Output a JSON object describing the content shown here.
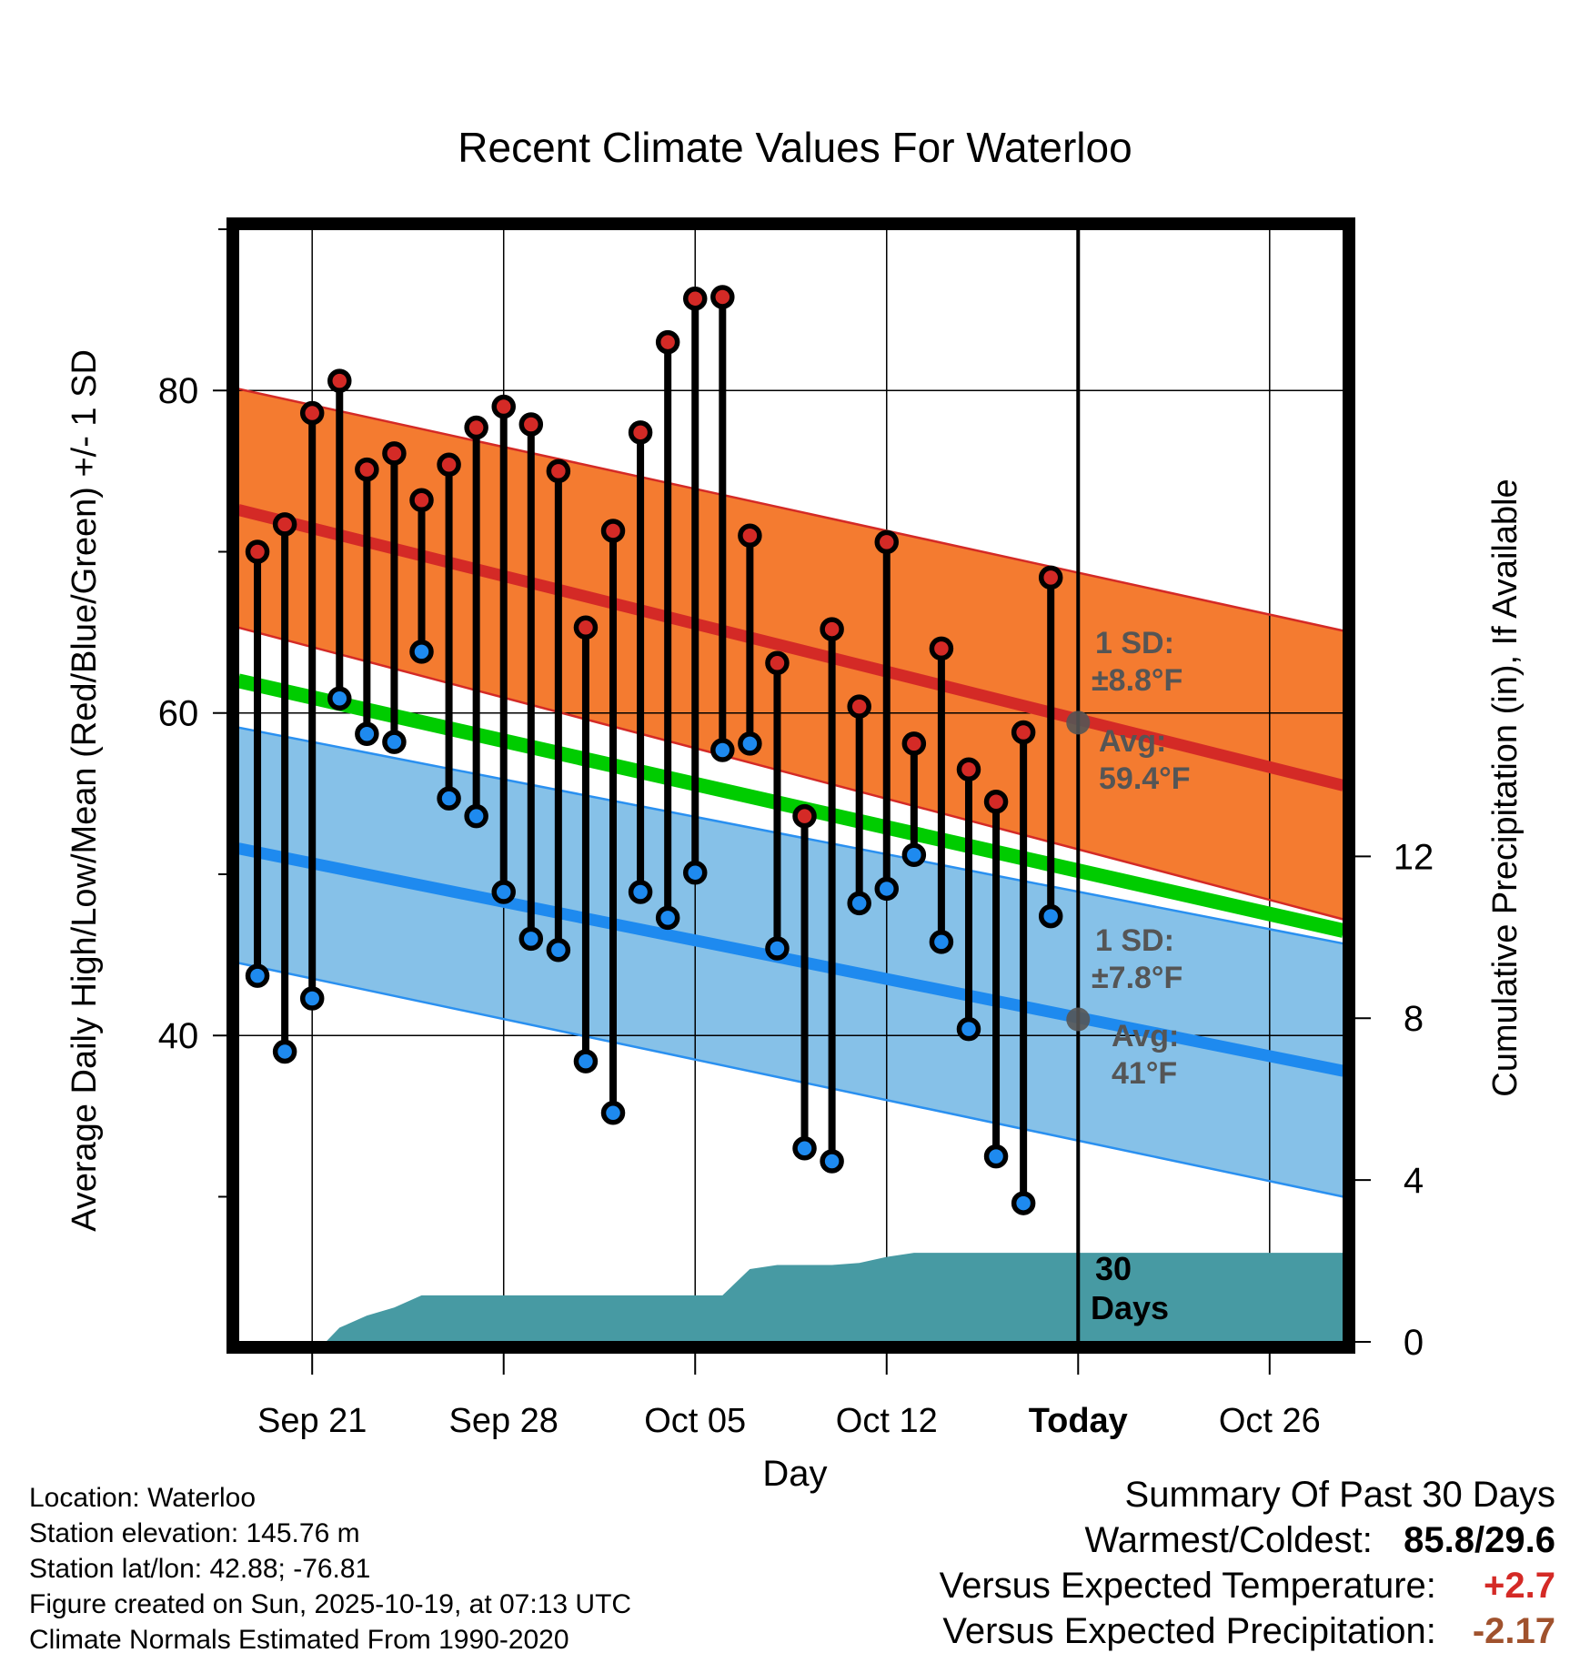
{
  "chart_data": {
    "type": "range",
    "title": "Recent Climate Values For Waterloo",
    "xlabel": "Day",
    "ylabel_left": "Average Daily High/Low/Mean (Red/Blue/Green) +/- 1 SD",
    "ylabel_right": "Cumulative Precipitation (in), If Available",
    "ylim_left": [
      21,
      90
    ],
    "ylim_right": [
      0,
      27.5
    ],
    "x_ticks": [
      {
        "day": 3,
        "label": "Sep 21"
      },
      {
        "day": 10,
        "label": "Sep 28"
      },
      {
        "day": 17,
        "label": "Oct 05"
      },
      {
        "day": 24,
        "label": "Oct 12"
      },
      {
        "day": 31,
        "label": "Today"
      },
      {
        "day": 38,
        "label": "Oct 26"
      }
    ],
    "y_ticks_left": [
      40,
      60,
      80
    ],
    "y_minor_left": [
      30,
      50,
      70,
      90
    ],
    "y_ticks_right": [
      0,
      4,
      8,
      12
    ],
    "xlim_days": [
      0.3,
      40.7
    ],
    "today_day": 31,
    "today_text": [
      "30",
      "Days"
    ],
    "normals": {
      "high_mean": [
        72.6,
        55.5
      ],
      "high_upper": [
        80.1,
        65.1
      ],
      "high_lower": [
        65.3,
        47.2
      ],
      "low_mean": [
        51.6,
        37.8
      ],
      "low_upper": [
        59.1,
        45.7
      ],
      "low_lower": [
        44.5,
        30.0
      ],
      "mean": [
        62.0,
        46.5
      ]
    },
    "high_sd_label": [
      "1 SD:",
      "±8.8°F"
    ],
    "high_avg_label": [
      "Avg:",
      "59.4°F"
    ],
    "low_sd_label": [
      "1 SD:",
      "±7.8°F"
    ],
    "low_avg_label": [
      "Avg:",
      "41°F"
    ],
    "today_high_avg": 59.4,
    "today_low_avg": 41.0,
    "days": [
      1,
      2,
      3,
      4,
      5,
      6,
      7,
      8,
      9,
      10,
      11,
      12,
      13,
      14,
      15,
      16,
      17,
      18,
      19,
      20,
      21,
      22,
      23,
      24,
      25,
      26,
      27,
      28,
      29,
      30
    ],
    "highs": [
      70.0,
      71.7,
      78.6,
      80.6,
      75.1,
      76.1,
      73.2,
      75.4,
      77.7,
      79.0,
      77.9,
      75.0,
      65.3,
      71.3,
      77.4,
      83.0,
      85.7,
      85.8,
      71.0,
      63.1,
      53.6,
      65.2,
      60.4,
      70.6,
      58.1,
      64.0,
      56.5,
      54.5,
      58.8,
      68.4
    ],
    "lows": [
      43.7,
      39.0,
      42.3,
      60.9,
      58.7,
      58.2,
      63.8,
      54.7,
      53.6,
      48.9,
      46.0,
      45.3,
      38.4,
      35.2,
      48.9,
      47.3,
      50.1,
      57.7,
      58.1,
      45.4,
      33.0,
      32.2,
      48.2,
      49.1,
      51.2,
      45.8,
      40.4,
      32.5,
      29.6,
      47.4
    ],
    "precip_cumulative": [
      {
        "day": 3.5,
        "value": 0
      },
      {
        "day": 4,
        "value": 0.35
      },
      {
        "day": 5,
        "value": 0.65
      },
      {
        "day": 6,
        "value": 0.85
      },
      {
        "day": 7,
        "value": 1.15
      },
      {
        "day": 18,
        "value": 1.15
      },
      {
        "day": 19,
        "value": 1.8
      },
      {
        "day": 20,
        "value": 1.9
      },
      {
        "day": 22,
        "value": 1.9
      },
      {
        "day": 23,
        "value": 1.95
      },
      {
        "day": 24,
        "value": 2.1
      },
      {
        "day": 25,
        "value": 2.2
      },
      {
        "day": 40.7,
        "value": 2.2
      }
    ]
  },
  "info": {
    "location": "Location: Waterloo",
    "elevation": "Station elevation: 145.76 m",
    "latlon": "Station lat/lon: 42.88; -76.81",
    "created": "Figure created on Sun, 2025-10-19, at 07:13 UTC",
    "normals": "Climate Normals Estimated From 1990-2020"
  },
  "summary": {
    "heading": "Summary Of Past 30 Days",
    "warm_cold_label": "Warmest/Coldest:",
    "warm_cold_value": "85.8/29.6",
    "temp_label": "Versus Expected Temperature:",
    "temp_value": "+2.7",
    "precip_label": "Versus Expected Precipitation:",
    "precip_value": "-2.17"
  },
  "colors": {
    "high_band": "#f47b30",
    "high_line": "#d42a26",
    "low_band": "#86c1e8",
    "low_line": "#1e8aef",
    "low_edge": "#2a90f0",
    "mean_line": "#00cc00",
    "precip": "#479aa3",
    "high_dot": "#d42a26",
    "low_dot": "#1e8aef",
    "temp_value": "#d42a26",
    "precip_value": "#a0522d",
    "annotation": "#555555"
  }
}
